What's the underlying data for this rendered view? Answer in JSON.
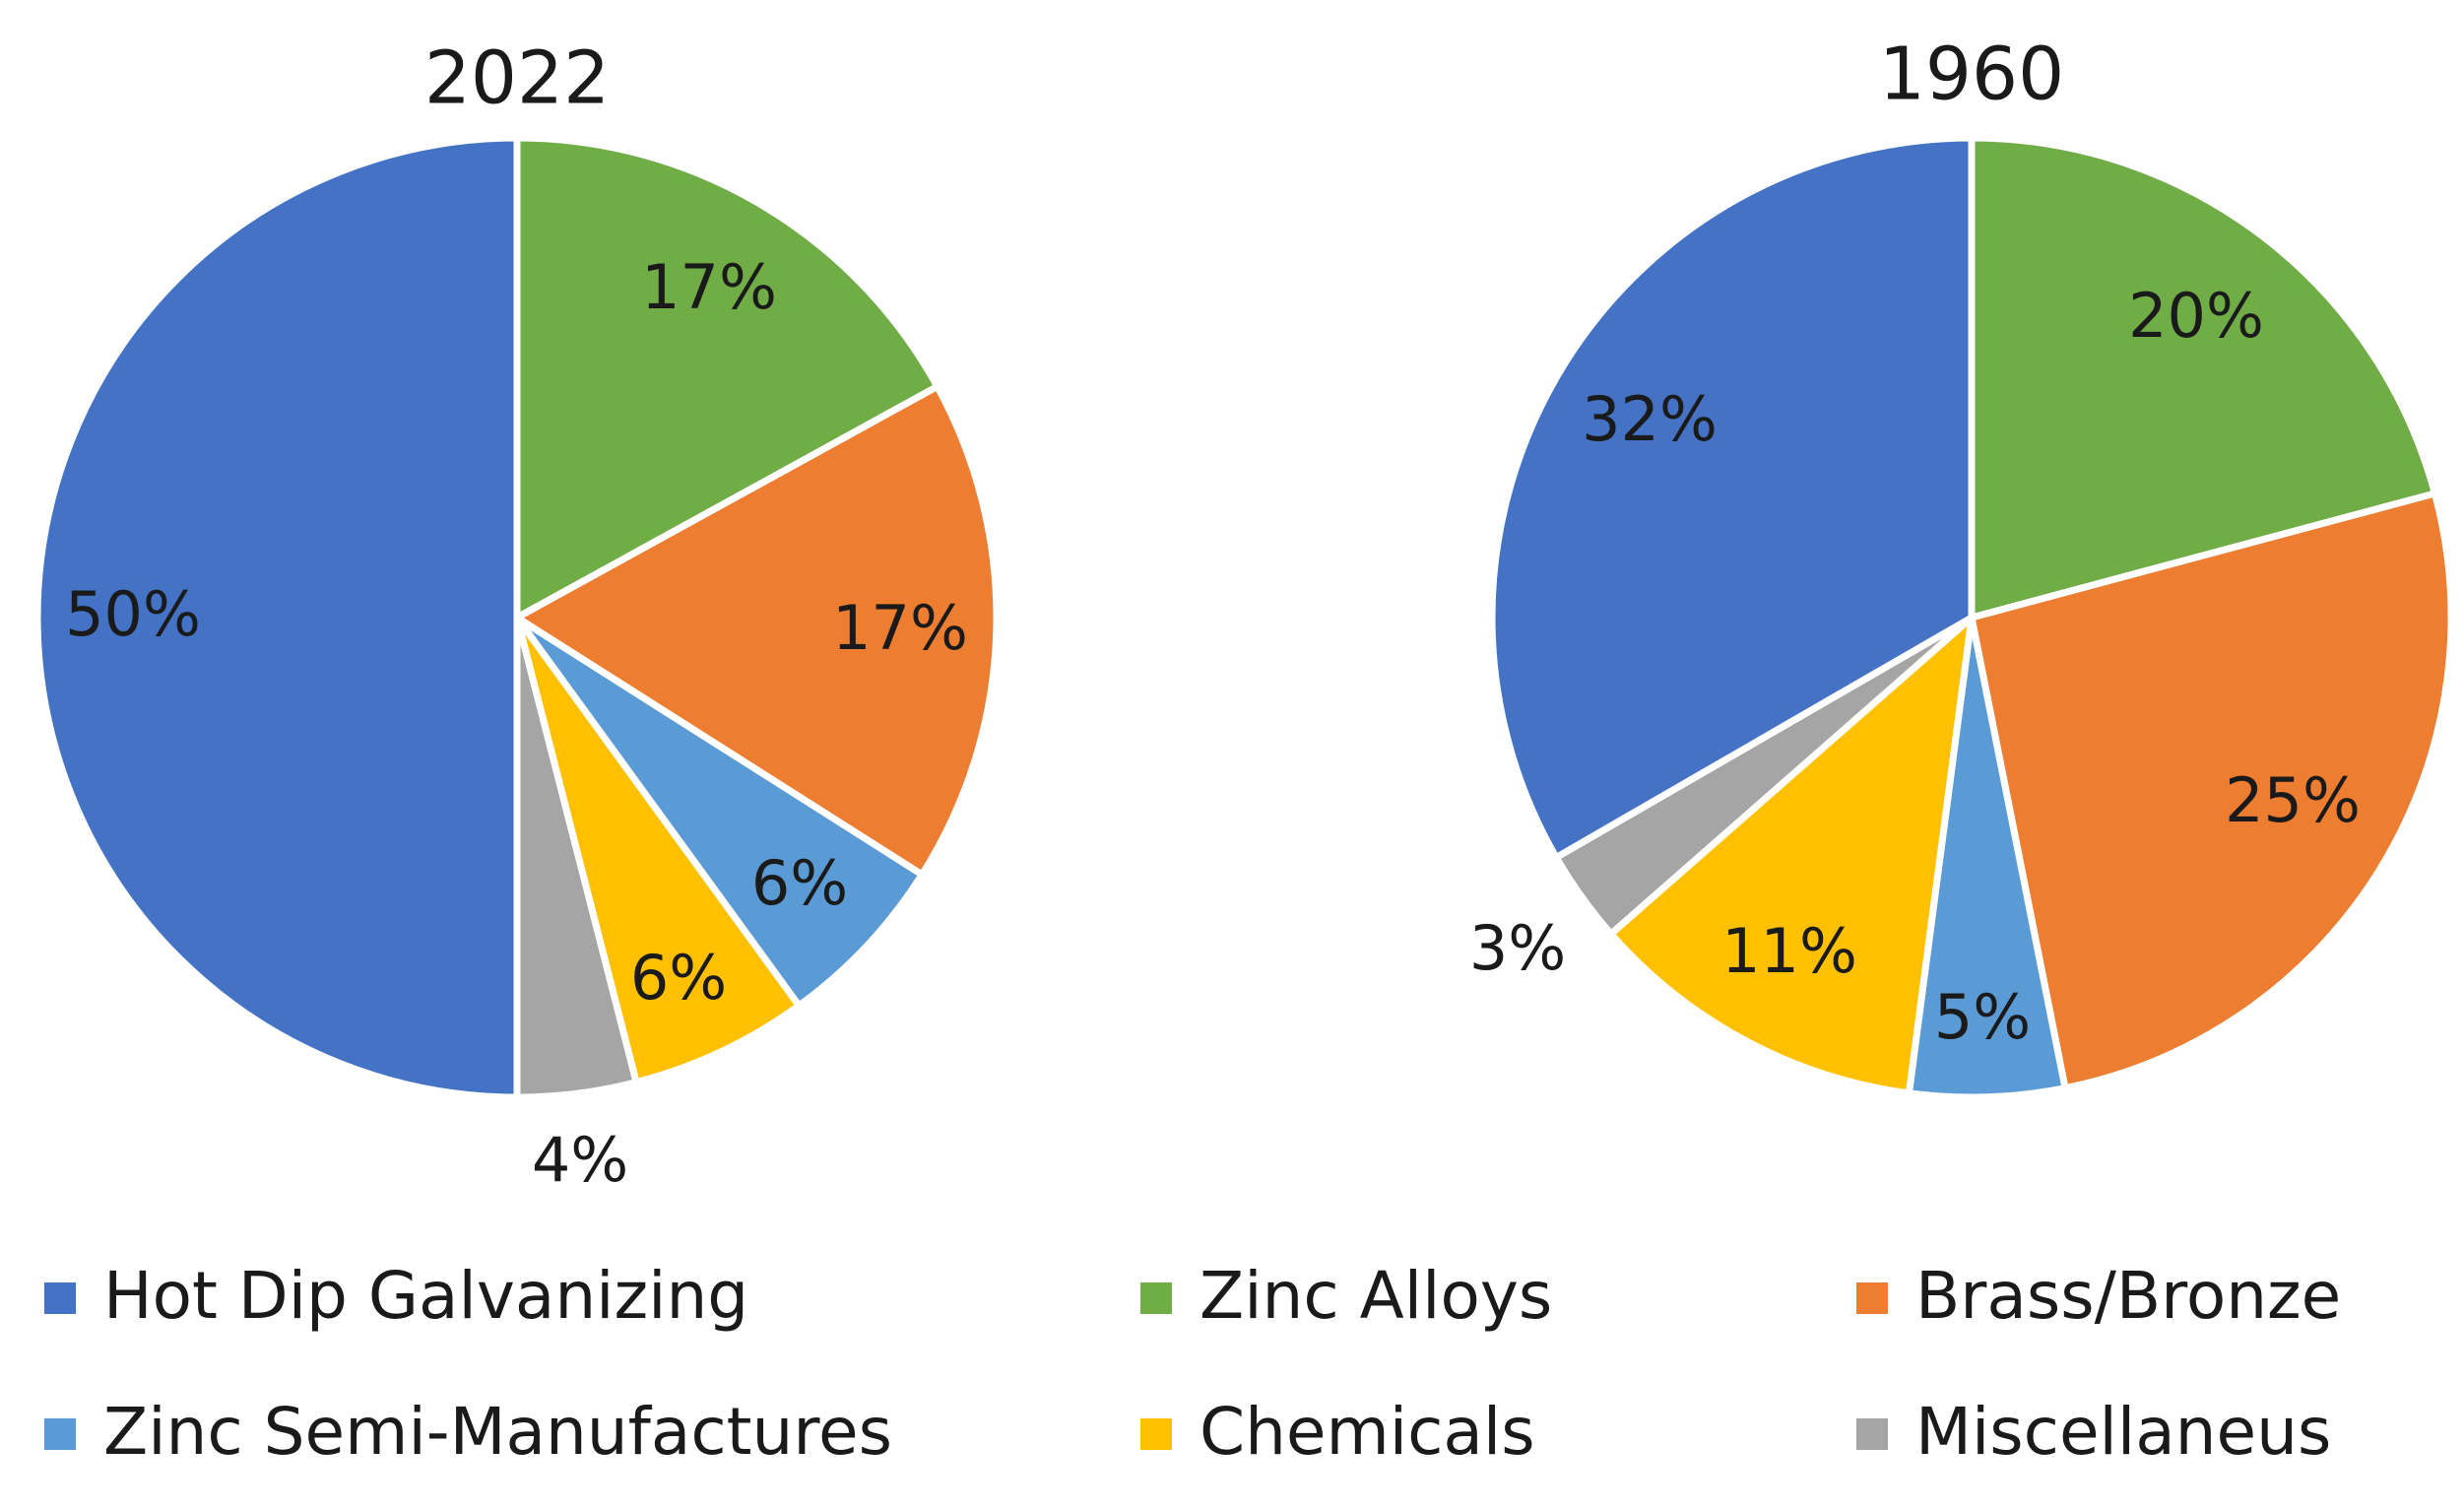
{
  "chart_data": [
    {
      "type": "pie",
      "title": "2022",
      "slices": [
        {
          "category": "Zinc Alloys",
          "value": 17,
          "label": "17%"
        },
        {
          "category": "Brass/Bronze",
          "value": 17,
          "label": "17%"
        },
        {
          "category": "Zinc Semi-Manufactures",
          "value": 6,
          "label": "6%"
        },
        {
          "category": "Chemicals",
          "value": 6,
          "label": "6%"
        },
        {
          "category": "Miscellaneus",
          "value": 4,
          "label": "4%"
        },
        {
          "category": "Hot Dip Galvanizing",
          "value": 50,
          "label": "50%"
        }
      ]
    },
    {
      "type": "pie",
      "title": "1960",
      "slices": [
        {
          "category": "Zinc Alloys",
          "value": 20,
          "label": "20%"
        },
        {
          "category": "Brass/Bronze",
          "value": 25,
          "label": "25%"
        },
        {
          "category": "Zinc Semi-Manufactures",
          "value": 5,
          "label": "5%"
        },
        {
          "category": "Chemicals",
          "value": 11,
          "label": "11%"
        },
        {
          "category": "Miscellaneus",
          "value": 3,
          "label": "3%"
        },
        {
          "category": "Hot Dip Galvanizing",
          "value": 32,
          "label": "32%"
        }
      ]
    }
  ],
  "legend": [
    {
      "label": "Hot Dip Galvanizing",
      "color": "#4472C4"
    },
    {
      "label": "Zinc Alloys",
      "color": "#70AD47"
    },
    {
      "label": "Brass/Bronze",
      "color": "#ED7D31"
    },
    {
      "label": "Zinc Semi-Manufactures",
      "color": "#5B9BD5"
    },
    {
      "label": "Chemicals",
      "color": "#FFC000"
    },
    {
      "label": "Miscellaneus",
      "color": "#A5A5A5"
    }
  ]
}
